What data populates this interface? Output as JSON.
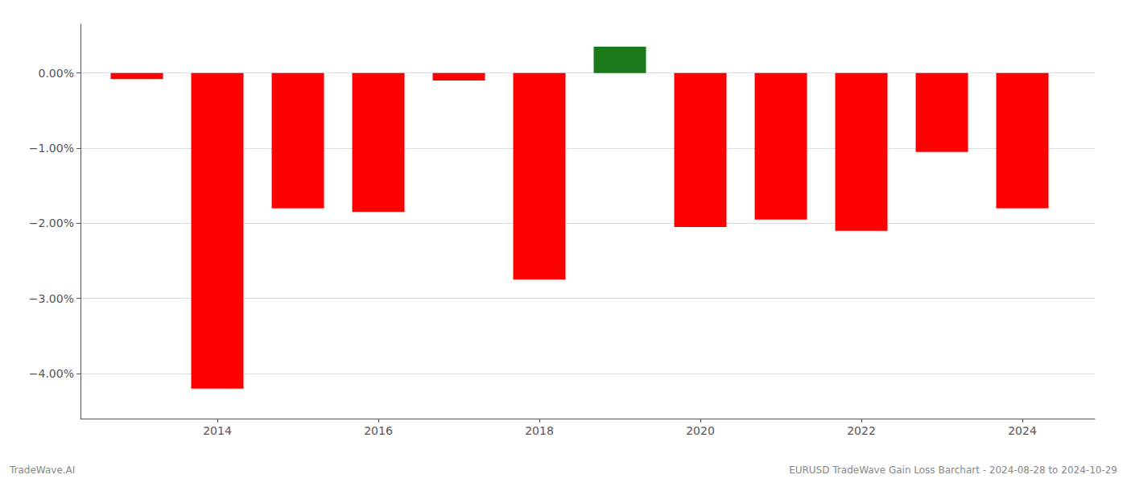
{
  "chart_data": {
    "type": "bar",
    "x": [
      2013,
      2014,
      2015,
      2016,
      2017,
      2018,
      2019,
      2020,
      2021,
      2022,
      2023,
      2024
    ],
    "values": [
      -0.08,
      -4.2,
      -1.8,
      -1.85,
      -0.1,
      -2.75,
      0.35,
      -2.05,
      -1.95,
      -2.1,
      -1.05,
      -1.8
    ],
    "colors": [
      "#ff0000",
      "#ff0000",
      "#ff0000",
      "#ff0000",
      "#ff0000",
      "#ff0000",
      "#1a7a1a",
      "#ff0000",
      "#ff0000",
      "#ff0000",
      "#ff0000",
      "#ff0000"
    ],
    "xlim": [
      2012.3,
      2024.9
    ],
    "xticks": [
      2014,
      2016,
      2018,
      2020,
      2022,
      2024
    ],
    "ylim": [
      -4.6,
      0.65
    ],
    "yticks": [
      {
        "value": 0.0,
        "label": "0.00%"
      },
      {
        "value": -1.0,
        "label": "−1.00%"
      },
      {
        "value": -2.0,
        "label": "−2.00%"
      },
      {
        "value": -3.0,
        "label": "−3.00%"
      },
      {
        "value": -4.0,
        "label": "−4.00%"
      }
    ],
    "grid": true,
    "annotations": [
      "TradeWave.AI",
      "EURUSD TradeWave Gain Loss Barchart - 2024-08-28 to 2024-10-29"
    ]
  }
}
